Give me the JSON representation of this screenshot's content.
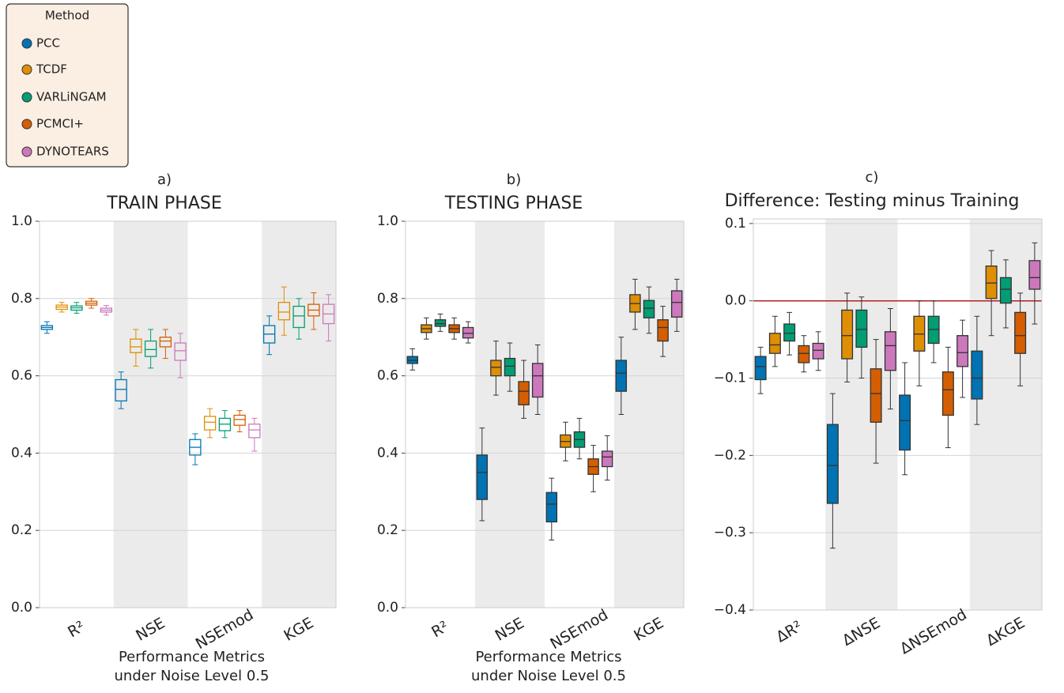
{
  "chart_data": [
    {
      "type": "box",
      "panel_label": "a)",
      "title": "TRAIN PHASE",
      "xlabel": [
        "Performance Metrics",
        "under Noise Level 0.5"
      ],
      "legend_title": "Method",
      "filled": false,
      "shaded_categories": [
        1,
        3
      ],
      "categories": [
        "R²",
        "NSE",
        "NSEmod",
        "KGE"
      ],
      "ylim": [
        0,
        1.0
      ],
      "yticks": [
        {
          "value": 0,
          "label": "0.0"
        },
        0.2,
        0.4,
        0.6,
        0.8,
        {
          "value": 1.0,
          "label": "1.0"
        }
      ],
      "grid": true,
      "series": [
        {
          "name": "PCC",
          "color": "#0173b2",
          "boxes": [
            {
              "low": 0.71,
              "q1": 0.72,
              "median": 0.725,
              "q3": 0.73,
              "high": 0.74
            },
            {
              "low": 0.515,
              "q1": 0.535,
              "median": 0.565,
              "q3": 0.59,
              "high": 0.61
            },
            {
              "low": 0.37,
              "q1": 0.395,
              "median": 0.415,
              "q3": 0.435,
              "high": 0.45
            },
            {
              "low": 0.655,
              "q1": 0.685,
              "median": 0.708,
              "q3": 0.73,
              "high": 0.755
            }
          ]
        },
        {
          "name": "TCDF",
          "color": "#de8f05",
          "boxes": [
            {
              "low": 0.765,
              "q1": 0.772,
              "median": 0.778,
              "q3": 0.783,
              "high": 0.79
            },
            {
              "low": 0.625,
              "q1": 0.66,
              "median": 0.675,
              "q3": 0.695,
              "high": 0.72
            },
            {
              "low": 0.44,
              "q1": 0.46,
              "median": 0.48,
              "q3": 0.495,
              "high": 0.515
            },
            {
              "low": 0.705,
              "q1": 0.745,
              "median": 0.765,
              "q3": 0.79,
              "high": 0.83
            }
          ]
        },
        {
          "name": "VARLiNGAM",
          "color": "#029e73",
          "boxes": [
            {
              "low": 0.762,
              "q1": 0.77,
              "median": 0.776,
              "q3": 0.781,
              "high": 0.79
            },
            {
              "low": 0.62,
              "q1": 0.65,
              "median": 0.668,
              "q3": 0.69,
              "high": 0.72
            },
            {
              "low": 0.44,
              "q1": 0.458,
              "median": 0.475,
              "q3": 0.49,
              "high": 0.51
            },
            {
              "low": 0.695,
              "q1": 0.725,
              "median": 0.755,
              "q3": 0.78,
              "high": 0.8
            }
          ]
        },
        {
          "name": "PCMCI+",
          "color": "#d55e00",
          "boxes": [
            {
              "low": 0.775,
              "q1": 0.783,
              "median": 0.788,
              "q3": 0.793,
              "high": 0.8
            },
            {
              "low": 0.645,
              "q1": 0.675,
              "median": 0.69,
              "q3": 0.7,
              "high": 0.72
            },
            {
              "low": 0.455,
              "q1": 0.472,
              "median": 0.487,
              "q3": 0.498,
              "high": 0.51
            },
            {
              "low": 0.72,
              "q1": 0.755,
              "median": 0.77,
              "q3": 0.785,
              "high": 0.815
            }
          ]
        },
        {
          "name": "DYNOTEARS",
          "color": "#cc78bc",
          "boxes": [
            {
              "low": 0.757,
              "q1": 0.765,
              "median": 0.77,
              "q3": 0.775,
              "high": 0.782
            },
            {
              "low": 0.595,
              "q1": 0.64,
              "median": 0.665,
              "q3": 0.685,
              "high": 0.71
            },
            {
              "low": 0.405,
              "q1": 0.44,
              "median": 0.46,
              "q3": 0.475,
              "high": 0.49
            },
            {
              "low": 0.69,
              "q1": 0.735,
              "median": 0.76,
              "q3": 0.785,
              "high": 0.81
            }
          ]
        }
      ]
    },
    {
      "type": "box",
      "panel_label": "b)",
      "title": "TESTING PHASE",
      "xlabel": [
        "Performance Metrics",
        "under Noise Level 0.5"
      ],
      "filled": true,
      "shaded_categories": [
        1,
        3
      ],
      "categories": [
        "R²",
        "NSE",
        "NSEmod",
        "KGE"
      ],
      "ylim": [
        0,
        1.0
      ],
      "yticks": [
        {
          "value": 0,
          "label": "0.0"
        },
        0.2,
        0.4,
        0.6,
        0.8,
        {
          "value": 1.0,
          "label": "1.0"
        }
      ],
      "grid": true,
      "series": [
        {
          "name": "PCC",
          "color": "#0173b2",
          "boxes": [
            {
              "low": 0.615,
              "q1": 0.632,
              "median": 0.64,
              "q3": 0.65,
              "high": 0.67
            },
            {
              "low": 0.225,
              "q1": 0.28,
              "median": 0.35,
              "q3": 0.395,
              "high": 0.465
            },
            {
              "low": 0.175,
              "q1": 0.222,
              "median": 0.268,
              "q3": 0.298,
              "high": 0.335
            },
            {
              "low": 0.5,
              "q1": 0.56,
              "median": 0.607,
              "q3": 0.64,
              "high": 0.7
            }
          ]
        },
        {
          "name": "TCDF",
          "color": "#de8f05",
          "boxes": [
            {
              "low": 0.695,
              "q1": 0.712,
              "median": 0.722,
              "q3": 0.732,
              "high": 0.75
            },
            {
              "low": 0.55,
              "q1": 0.6,
              "median": 0.622,
              "q3": 0.64,
              "high": 0.69
            },
            {
              "low": 0.38,
              "q1": 0.415,
              "median": 0.43,
              "q3": 0.447,
              "high": 0.48
            },
            {
              "low": 0.72,
              "q1": 0.765,
              "median": 0.787,
              "q3": 0.81,
              "high": 0.85
            }
          ]
        },
        {
          "name": "VARLiNGAM",
          "color": "#029e73",
          "boxes": [
            {
              "low": 0.715,
              "q1": 0.728,
              "median": 0.735,
              "q3": 0.745,
              "high": 0.76
            },
            {
              "low": 0.56,
              "q1": 0.6,
              "median": 0.625,
              "q3": 0.645,
              "high": 0.685
            },
            {
              "low": 0.385,
              "q1": 0.415,
              "median": 0.435,
              "q3": 0.455,
              "high": 0.49
            },
            {
              "low": 0.71,
              "q1": 0.75,
              "median": 0.775,
              "q3": 0.795,
              "high": 0.83
            }
          ]
        },
        {
          "name": "PCMCI+",
          "color": "#d55e00",
          "boxes": [
            {
              "low": 0.695,
              "q1": 0.712,
              "median": 0.722,
              "q3": 0.732,
              "high": 0.75
            },
            {
              "low": 0.49,
              "q1": 0.525,
              "median": 0.56,
              "q3": 0.585,
              "high": 0.64
            },
            {
              "low": 0.3,
              "q1": 0.345,
              "median": 0.365,
              "q3": 0.385,
              "high": 0.42
            },
            {
              "low": 0.65,
              "q1": 0.69,
              "median": 0.725,
              "q3": 0.745,
              "high": 0.78
            }
          ]
        },
        {
          "name": "DYNOTEARS",
          "color": "#cc78bc",
          "boxes": [
            {
              "low": 0.685,
              "q1": 0.698,
              "median": 0.71,
              "q3": 0.725,
              "high": 0.74
            },
            {
              "low": 0.5,
              "q1": 0.545,
              "median": 0.6,
              "q3": 0.632,
              "high": 0.68
            },
            {
              "low": 0.33,
              "q1": 0.365,
              "median": 0.39,
              "q3": 0.405,
              "high": 0.445
            },
            {
              "low": 0.715,
              "q1": 0.752,
              "median": 0.79,
              "q3": 0.82,
              "high": 0.85
            }
          ]
        }
      ]
    },
    {
      "type": "box",
      "panel_label": "c)",
      "title": "Difference: Testing minus Training",
      "filled": true,
      "shaded_categories": [
        1,
        3
      ],
      "hline": 0,
      "hline_color": "#b22222",
      "categories": [
        "ΔR²",
        "ΔNSE",
        "ΔNSEmod",
        "ΔKGE"
      ],
      "ylim": [
        -0.4,
        0.106
      ],
      "yticks": [
        {
          "value": -0.4,
          "label": "−0.4"
        },
        {
          "value": -0.3,
          "label": "−0.3"
        },
        {
          "value": -0.2,
          "label": "−0.2"
        },
        {
          "value": -0.1,
          "label": "−0.1"
        },
        {
          "value": 0,
          "label": "0.0"
        },
        0.1
      ],
      "grid": true,
      "series": [
        {
          "name": "PCC",
          "color": "#0173b2",
          "boxes": [
            {
              "low": -0.12,
              "q1": -0.102,
              "median": -0.085,
              "q3": -0.072,
              "high": -0.06
            },
            {
              "low": -0.32,
              "q1": -0.262,
              "median": -0.213,
              "q3": -0.16,
              "high": -0.12
            },
            {
              "low": -0.225,
              "q1": -0.193,
              "median": -0.155,
              "q3": -0.122,
              "high": -0.08
            },
            {
              "low": -0.16,
              "q1": -0.127,
              "median": -0.1,
              "q3": -0.065,
              "high": -0.02
            }
          ]
        },
        {
          "name": "TCDF",
          "color": "#de8f05",
          "boxes": [
            {
              "low": -0.085,
              "q1": -0.068,
              "median": -0.057,
              "q3": -0.042,
              "high": -0.02
            },
            {
              "low": -0.105,
              "q1": -0.075,
              "median": -0.045,
              "q3": -0.012,
              "high": 0.01
            },
            {
              "low": -0.11,
              "q1": -0.065,
              "median": -0.043,
              "q3": -0.02,
              "high": 0
            },
            {
              "low": -0.045,
              "q1": 0.003,
              "median": 0.023,
              "q3": 0.045,
              "high": 0.065
            }
          ]
        },
        {
          "name": "VARLiNGAM",
          "color": "#029e73",
          "boxes": [
            {
              "low": -0.07,
              "q1": -0.052,
              "median": -0.042,
              "q3": -0.03,
              "high": -0.015
            },
            {
              "low": -0.1,
              "q1": -0.06,
              "median": -0.037,
              "q3": -0.012,
              "high": 0.005
            },
            {
              "low": -0.08,
              "q1": -0.055,
              "median": -0.037,
              "q3": -0.02,
              "high": 0
            },
            {
              "low": -0.035,
              "q1": -0.003,
              "median": 0.015,
              "q3": 0.03,
              "high": 0.053
            }
          ]
        },
        {
          "name": "PCMCI+",
          "color": "#d55e00",
          "boxes": [
            {
              "low": -0.092,
              "q1": -0.08,
              "median": -0.068,
              "q3": -0.058,
              "high": -0.045
            },
            {
              "low": -0.21,
              "q1": -0.157,
              "median": -0.12,
              "q3": -0.088,
              "high": -0.05
            },
            {
              "low": -0.19,
              "q1": -0.148,
              "median": -0.115,
              "q3": -0.092,
              "high": -0.06
            },
            {
              "low": -0.11,
              "q1": -0.068,
              "median": -0.045,
              "q3": -0.015,
              "high": 0.01
            }
          ]
        },
        {
          "name": "DYNOTEARS",
          "color": "#cc78bc",
          "boxes": [
            {
              "low": -0.09,
              "q1": -0.075,
              "median": -0.064,
              "q3": -0.055,
              "high": -0.04
            },
            {
              "low": -0.14,
              "q1": -0.09,
              "median": -0.058,
              "q3": -0.04,
              "high": -0.01
            },
            {
              "low": -0.125,
              "q1": -0.085,
              "median": -0.067,
              "q3": -0.045,
              "high": -0.025
            },
            {
              "low": -0.03,
              "q1": 0.015,
              "median": 0.03,
              "q3": 0.052,
              "high": 0.075
            }
          ]
        }
      ]
    }
  ]
}
